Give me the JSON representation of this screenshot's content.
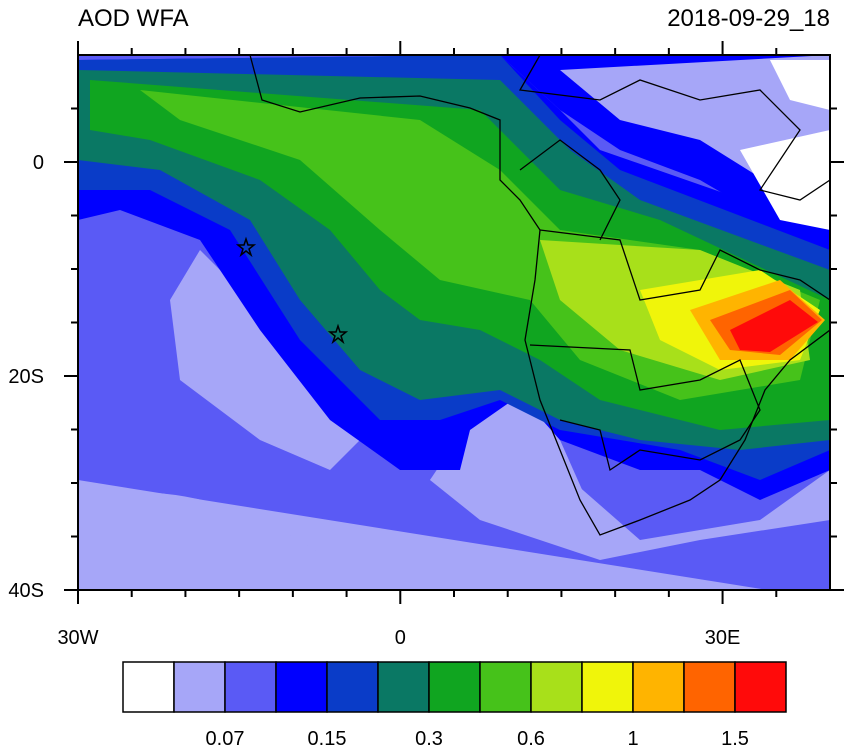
{
  "title": "AOD WFA",
  "date": "2018-09-29_18",
  "map": {
    "xlim": [
      -30,
      40
    ],
    "ylim": [
      -40,
      10
    ],
    "xticks": [
      {
        "value": -30,
        "label": "30W"
      },
      {
        "value": 0,
        "label": "0"
      },
      {
        "value": 30,
        "label": "30E"
      }
    ],
    "yticks": [
      {
        "value": 0,
        "label": "0"
      },
      {
        "value": -20,
        "label": "20S"
      },
      {
        "value": -40,
        "label": "40S"
      }
    ],
    "xminorticks": [
      -25,
      -20,
      -15,
      -10,
      -5,
      5,
      10,
      15,
      20,
      25,
      35
    ],
    "yminorticks": [
      5,
      -5,
      -10,
      -15,
      -25,
      -30,
      -35
    ]
  },
  "colorbar": {
    "colors": [
      "#ffffff",
      "#a6a6f8",
      "#5a5af5",
      "#0000ff",
      "#0a3cc8",
      "#0a7864",
      "#10a520",
      "#46c21a",
      "#a8e01a",
      "#f0f50a",
      "#ffb400",
      "#ff6400",
      "#ff0a0a"
    ],
    "labels": [
      0.07,
      0.15,
      0.3,
      0.6,
      1,
      1.5
    ]
  }
}
